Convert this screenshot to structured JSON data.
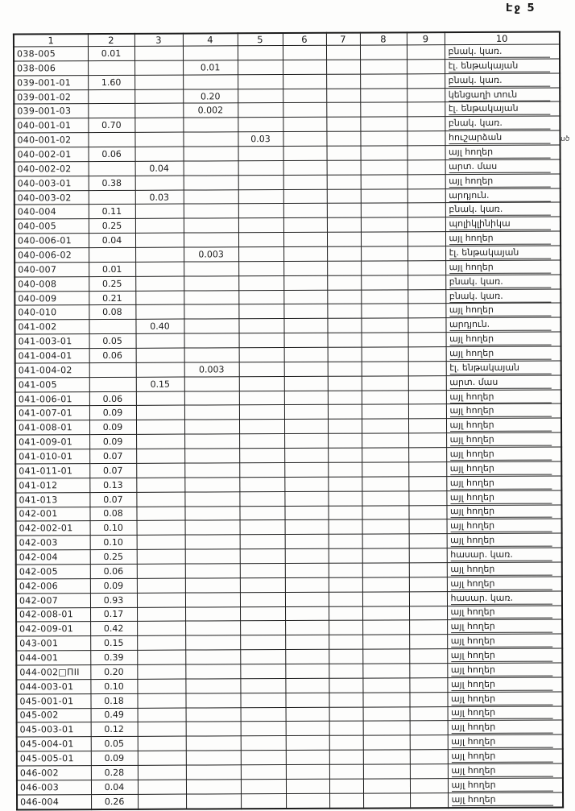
{
  "page": {
    "number_label": "Էջ 5",
    "marginal_note": "ած"
  },
  "table": {
    "column_headers": [
      "1",
      "2",
      "3",
      "4",
      "5",
      "6",
      "7",
      "8",
      "9",
      "10"
    ],
    "rows": [
      [
        "038-005",
        "0.01",
        "",
        "",
        "",
        "",
        "",
        "",
        "",
        "բնակ. կառ."
      ],
      [
        "038-006",
        "",
        "",
        "0.01",
        "",
        "",
        "",
        "",
        "",
        "էլ. ենթակայան"
      ],
      [
        "039-001-01",
        "1.60",
        "",
        "",
        "",
        "",
        "",
        "",
        "",
        "բնակ. կառ."
      ],
      [
        "039-001-02",
        "",
        "",
        "0.20",
        "",
        "",
        "",
        "",
        "",
        "կենցաղի տուն"
      ],
      [
        "039-001-03",
        "",
        "",
        "0.002",
        "",
        "",
        "",
        "",
        "",
        "էլ. ենթակայան"
      ],
      [
        "040-001-01",
        "0.70",
        "",
        "",
        "",
        "",
        "",
        "",
        "",
        "բնակ. կառ."
      ],
      [
        "040-001-02",
        "",
        "",
        "",
        "0.03",
        "",
        "",
        "",
        "",
        "հուշարձան"
      ],
      [
        "040-002-01",
        "0.06",
        "",
        "",
        "",
        "",
        "",
        "",
        "",
        "այլ հողեր"
      ],
      [
        "040-002-02",
        "",
        "0.04",
        "",
        "",
        "",
        "",
        "",
        "",
        "արտ. մաս"
      ],
      [
        "040-003-01",
        "0.38",
        "",
        "",
        "",
        "",
        "",
        "",
        "",
        "այլ հողեր"
      ],
      [
        "040-003-02",
        "",
        "0.03",
        "",
        "",
        "",
        "",
        "",
        "",
        "արդյուն."
      ],
      [
        "040-004",
        "0.11",
        "",
        "",
        "",
        "",
        "",
        "",
        "",
        "բնակ. կառ."
      ],
      [
        "040-005",
        "0.25",
        "",
        "",
        "",
        "",
        "",
        "",
        "",
        "պոլիկլինիկա"
      ],
      [
        "040-006-01",
        "0.04",
        "",
        "",
        "",
        "",
        "",
        "",
        "",
        "այլ հողեր"
      ],
      [
        "040-006-02",
        "",
        "",
        "0.003",
        "",
        "",
        "",
        "",
        "",
        "էլ. ենթակայան"
      ],
      [
        "040-007",
        "0.01",
        "",
        "",
        "",
        "",
        "",
        "",
        "",
        "այլ հողեր"
      ],
      [
        "040-008",
        "0.25",
        "",
        "",
        "",
        "",
        "",
        "",
        "",
        "բնակ. կառ."
      ],
      [
        "040-009",
        "0.21",
        "",
        "",
        "",
        "",
        "",
        "",
        "",
        "բնակ. կառ."
      ],
      [
        "040-010",
        "0.08",
        "",
        "",
        "",
        "",
        "",
        "",
        "",
        "այլ հողեր"
      ],
      [
        "041-002",
        "",
        "0.40",
        "",
        "",
        "",
        "",
        "",
        "",
        "արդյուն."
      ],
      [
        "041-003-01",
        "0.05",
        "",
        "",
        "",
        "",
        "",
        "",
        "",
        "այլ հողեր"
      ],
      [
        "041-004-01",
        "0.06",
        "",
        "",
        "",
        "",
        "",
        "",
        "",
        "այլ հողեր"
      ],
      [
        "041-004-02",
        "",
        "",
        "0.003",
        "",
        "",
        "",
        "",
        "",
        "էլ. ենթակայան"
      ],
      [
        "041-005",
        "",
        "0.15",
        "",
        "",
        "",
        "",
        "",
        "",
        "արտ. մաս"
      ],
      [
        "041-006-01",
        "0.06",
        "",
        "",
        "",
        "",
        "",
        "",
        "",
        "այլ հողեր"
      ],
      [
        "041-007-01",
        "0.09",
        "",
        "",
        "",
        "",
        "",
        "",
        "",
        "այլ հողեր"
      ],
      [
        "041-008-01",
        "0.09",
        "",
        "",
        "",
        "",
        "",
        "",
        "",
        "այլ հողեր"
      ],
      [
        "041-009-01",
        "0.09",
        "",
        "",
        "",
        "",
        "",
        "",
        "",
        "այլ հողեր"
      ],
      [
        "041-010-01",
        "0.07",
        "",
        "",
        "",
        "",
        "",
        "",
        "",
        "այլ հողեր"
      ],
      [
        "041-011-01",
        "0.07",
        "",
        "",
        "",
        "",
        "",
        "",
        "",
        "այլ հողեր"
      ],
      [
        "041-012",
        "0.13",
        "",
        "",
        "",
        "",
        "",
        "",
        "",
        "այլ հողեր"
      ],
      [
        "041-013",
        "0.07",
        "",
        "",
        "",
        "",
        "",
        "",
        "",
        "այլ հողեր"
      ],
      [
        "042-001",
        "0.08",
        "",
        "",
        "",
        "",
        "",
        "",
        "",
        "այլ հողեր"
      ],
      [
        "042-002-01",
        "0.10",
        "",
        "",
        "",
        "",
        "",
        "",
        "",
        "այլ հողեր"
      ],
      [
        "042-003",
        "0.10",
        "",
        "",
        "",
        "",
        "",
        "",
        "",
        "այլ հողեր"
      ],
      [
        "042-004",
        "0.25",
        "",
        "",
        "",
        "",
        "",
        "",
        "",
        "հասար. կառ."
      ],
      [
        "042-005",
        "0.06",
        "",
        "",
        "",
        "",
        "",
        "",
        "",
        "այլ հողեր"
      ],
      [
        "042-006",
        "0.09",
        "",
        "",
        "",
        "",
        "",
        "",
        "",
        "այլ հողեր"
      ],
      [
        "042-007",
        "0.93",
        "",
        "",
        "",
        "",
        "",
        "",
        "",
        "հասար. կառ."
      ],
      [
        "042-008-01",
        "0.17",
        "",
        "",
        "",
        "",
        "",
        "",
        "",
        "այլ հողեր"
      ],
      [
        "042-009-01",
        "0.42",
        "",
        "",
        "",
        "",
        "",
        "",
        "",
        "այլ հողեր"
      ],
      [
        "043-001",
        "0.15",
        "",
        "",
        "",
        "",
        "",
        "",
        "",
        "այլ հողեր"
      ],
      [
        "044-001",
        "0.39",
        "",
        "",
        "",
        "",
        "",
        "",
        "",
        "այլ հողեր"
      ],
      [
        "044-002□ПІІ",
        "0.20",
        "",
        "",
        "",
        "",
        "",
        "",
        "",
        "այլ հողեր"
      ],
      [
        "044-003-01",
        "0.10",
        "",
        "",
        "",
        "",
        "",
        "",
        "",
        "այլ հողեր"
      ],
      [
        "045-001-01",
        "0.18",
        "",
        "",
        "",
        "",
        "",
        "",
        "",
        "այլ հողեր"
      ],
      [
        "045-002",
        "0.49",
        "",
        "",
        "",
        "",
        "",
        "",
        "",
        "այլ հողեր"
      ],
      [
        "045-003-01",
        "0.12",
        "",
        "",
        "",
        "",
        "",
        "",
        "",
        "այլ հողեր"
      ],
      [
        "045-004-01",
        "0.05",
        "",
        "",
        "",
        "",
        "",
        "",
        "",
        "այլ հողեր"
      ],
      [
        "045-005-01",
        "0.09",
        "",
        "",
        "",
        "",
        "",
        "",
        "",
        "այլ հողեր"
      ],
      [
        "046-002",
        "0.28",
        "",
        "",
        "",
        "",
        "",
        "",
        "",
        "այլ հողեր"
      ],
      [
        "046-003",
        "0.04",
        "",
        "",
        "",
        "",
        "",
        "",
        "",
        "այլ հողեր"
      ],
      [
        "046-004",
        "0.26",
        "",
        "",
        "",
        "",
        "",
        "",
        "",
        "այլ հողեր"
      ]
    ]
  }
}
